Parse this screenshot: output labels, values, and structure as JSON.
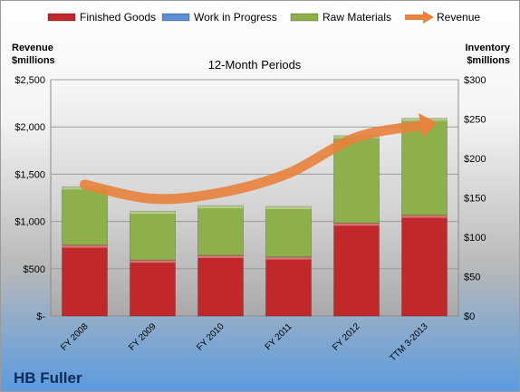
{
  "chart_data": {
    "type": "bar",
    "title": "12-Month Periods",
    "company": "HB Fuller",
    "categories": [
      "FY 2008",
      "FY 2009",
      "FY 2010",
      "FY 2011",
      "FY 2012",
      "TTM 3-2013"
    ],
    "series": [
      {
        "name": "Finished Goods",
        "kind": "bar",
        "stacked": true,
        "axis": "right",
        "color": "#c0282a",
        "values": [
          90,
          71,
          77,
          75,
          118,
          128
        ]
      },
      {
        "name": "Work in Progress",
        "kind": "bar",
        "stacked": true,
        "axis": "right",
        "color": "#5b8ed6",
        "values": [
          0,
          0,
          0,
          0,
          0,
          0
        ]
      },
      {
        "name": "Raw Materials",
        "kind": "bar",
        "stacked": true,
        "axis": "right",
        "color": "#8db04a",
        "values": [
          74,
          62,
          63,
          64,
          111,
          123
        ]
      },
      {
        "name": "Revenue",
        "kind": "line",
        "axis": "left",
        "color": "#e8823c",
        "values": [
          1390,
          1240,
          1305,
          1510,
          1890,
          2020
        ]
      }
    ],
    "left_axis": {
      "label_line1": "Revenue",
      "label_line2": "$millions",
      "min": 0,
      "max": 2500,
      "ticks": [
        0,
        500,
        1000,
        1500,
        2000,
        2500
      ],
      "tick_labels": [
        "$-",
        "$500",
        "$1,000",
        "$1,500",
        "$2,000",
        "$2,500"
      ]
    },
    "right_axis": {
      "label_line1": "Inventory",
      "label_line2": "$millions",
      "min": 0,
      "max": 300,
      "ticks": [
        0,
        50,
        100,
        150,
        200,
        250,
        300
      ],
      "tick_labels": [
        "$0",
        "$50",
        "$100",
        "$150",
        "$200",
        "$250",
        "$300"
      ]
    },
    "grid": true,
    "legend_position": "top"
  }
}
